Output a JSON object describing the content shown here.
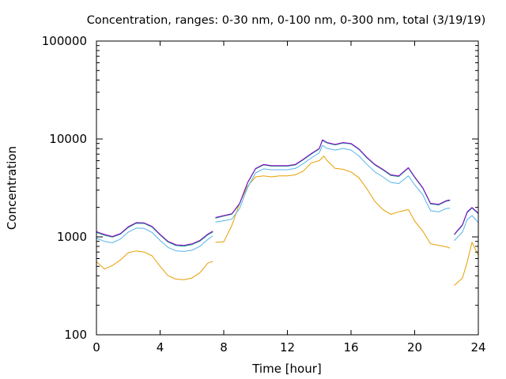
{
  "chart_data": {
    "type": "line",
    "title": "Concentration, ranges: 0-30 nm, 0-100 nm, 0-300 nm, total (3/19/19)",
    "xlabel": "Time [hour]",
    "ylabel": "Concentration",
    "xlim": [
      0,
      24
    ],
    "ylim": [
      100,
      100000
    ],
    "y_scale": "log",
    "grid": false,
    "legend": "none",
    "x_ticks": [
      "0",
      "4",
      "8",
      "12",
      "16",
      "20",
      "24"
    ],
    "y_ticks": [
      "100",
      "1000",
      "10000",
      "100000"
    ],
    "series": [
      {
        "color": "#9400d3",
        "segments": [
          [
            [
              0,
              1130
            ],
            [
              0.5,
              1060
            ],
            [
              1,
              1010
            ],
            [
              1.5,
              1080
            ],
            [
              2,
              1270
            ],
            [
              2.5,
              1400
            ],
            [
              3,
              1390
            ],
            [
              3.5,
              1280
            ],
            [
              4,
              1060
            ],
            [
              4.5,
              900
            ],
            [
              5,
              830
            ],
            [
              5.5,
              820
            ],
            [
              6,
              850
            ],
            [
              6.5,
              920
            ],
            [
              7,
              1070
            ],
            [
              7.3,
              1140
            ]
          ],
          [
            [
              7.5,
              1580
            ],
            [
              8,
              1650
            ],
            [
              8.5,
              1720
            ],
            [
              9,
              2200
            ],
            [
              9.5,
              3600
            ],
            [
              10,
              5000
            ],
            [
              10.5,
              5500
            ],
            [
              11,
              5350
            ],
            [
              11.5,
              5350
            ],
            [
              12,
              5350
            ],
            [
              12.5,
              5500
            ],
            [
              13,
              6200
            ],
            [
              13.5,
              7100
            ],
            [
              14,
              8000
            ],
            [
              14.2,
              9800
            ],
            [
              14.5,
              9200
            ],
            [
              15,
              8800
            ],
            [
              15.5,
              9200
            ],
            [
              16,
              9000
            ],
            [
              16.5,
              7900
            ],
            [
              17,
              6500
            ],
            [
              17.5,
              5500
            ],
            [
              18,
              4900
            ],
            [
              18.5,
              4300
            ],
            [
              19,
              4200
            ],
            [
              19.6,
              5100
            ],
            [
              20,
              4100
            ],
            [
              20.5,
              3200
            ],
            [
              21,
              2200
            ],
            [
              21.5,
              2150
            ],
            [
              22,
              2350
            ],
            [
              22.2,
              2380
            ]
          ],
          [
            [
              22.5,
              1070
            ],
            [
              23,
              1330
            ],
            [
              23.3,
              1800
            ],
            [
              23.6,
              2000
            ],
            [
              24,
              1750
            ]
          ]
        ]
      },
      {
        "color": "#009e73",
        "segments": [
          [
            [
              0,
              1110
            ],
            [
              0.5,
              1040
            ],
            [
              1,
              995
            ],
            [
              1.5,
              1065
            ],
            [
              2,
              1250
            ],
            [
              2.5,
              1380
            ],
            [
              3,
              1370
            ],
            [
              3.5,
              1260
            ],
            [
              4,
              1045
            ],
            [
              4.5,
              885
            ],
            [
              5,
              815
            ],
            [
              5.5,
              805
            ],
            [
              6,
              835
            ],
            [
              6.5,
              905
            ],
            [
              7,
              1050
            ],
            [
              7.3,
              1120
            ]
          ],
          [
            [
              7.5,
              1560
            ],
            [
              8,
              1630
            ],
            [
              8.5,
              1700
            ],
            [
              9,
              2170
            ],
            [
              9.5,
              3550
            ],
            [
              10,
              4950
            ],
            [
              10.5,
              5430
            ],
            [
              11,
              5280
            ],
            [
              11.5,
              5280
            ],
            [
              12,
              5280
            ],
            [
              12.5,
              5430
            ],
            [
              13,
              6120
            ],
            [
              13.5,
              7000
            ],
            [
              14,
              7900
            ],
            [
              14.2,
              9650
            ],
            [
              14.5,
              9100
            ],
            [
              15,
              8700
            ],
            [
              15.5,
              9100
            ],
            [
              16,
              8900
            ],
            [
              16.5,
              7800
            ],
            [
              17,
              6400
            ],
            [
              17.5,
              5430
            ],
            [
              18,
              4830
            ],
            [
              18.5,
              4240
            ],
            [
              19,
              4140
            ],
            [
              19.6,
              5030
            ],
            [
              20,
              4040
            ],
            [
              20.5,
              3150
            ],
            [
              21,
              2170
            ],
            [
              21.5,
              2120
            ],
            [
              22,
              2320
            ],
            [
              22.2,
              2350
            ]
          ],
          [
            [
              22.5,
              1055
            ],
            [
              23,
              1310
            ],
            [
              23.3,
              1770
            ],
            [
              23.6,
              1970
            ],
            [
              24,
              1720
            ]
          ]
        ]
      },
      {
        "color": "#56b4e9",
        "segments": [
          [
            [
              0,
              970
            ],
            [
              0.5,
              900
            ],
            [
              1,
              870
            ],
            [
              1.5,
              950
            ],
            [
              2,
              1120
            ],
            [
              2.5,
              1230
            ],
            [
              3,
              1220
            ],
            [
              3.5,
              1110
            ],
            [
              4,
              920
            ],
            [
              4.5,
              780
            ],
            [
              5,
              720
            ],
            [
              5.5,
              710
            ],
            [
              6,
              730
            ],
            [
              6.5,
              800
            ],
            [
              7,
              940
            ],
            [
              7.3,
              1020
            ]
          ],
          [
            [
              7.5,
              1420
            ],
            [
              8,
              1460
            ],
            [
              8.5,
              1520
            ],
            [
              9,
              1950
            ],
            [
              9.5,
              3200
            ],
            [
              10,
              4500
            ],
            [
              10.5,
              4950
            ],
            [
              11,
              4850
            ],
            [
              11.5,
              4850
            ],
            [
              12,
              4850
            ],
            [
              12.5,
              5000
            ],
            [
              13,
              5600
            ],
            [
              13.5,
              6400
            ],
            [
              14,
              7200
            ],
            [
              14.2,
              8600
            ],
            [
              14.5,
              8000
            ],
            [
              15,
              7700
            ],
            [
              15.5,
              8000
            ],
            [
              16,
              7700
            ],
            [
              16.5,
              6700
            ],
            [
              17,
              5500
            ],
            [
              17.5,
              4600
            ],
            [
              18,
              4100
            ],
            [
              18.5,
              3600
            ],
            [
              19,
              3500
            ],
            [
              19.6,
              4200
            ],
            [
              20,
              3400
            ],
            [
              20.5,
              2700
            ],
            [
              21,
              1850
            ],
            [
              21.5,
              1800
            ],
            [
              22,
              1950
            ],
            [
              22.2,
              1960
            ]
          ],
          [
            [
              22.5,
              920
            ],
            [
              23,
              1120
            ],
            [
              23.3,
              1500
            ],
            [
              23.6,
              1650
            ],
            [
              24,
              1400
            ]
          ]
        ]
      },
      {
        "color": "#e69f00",
        "segments": [
          [
            [
              0,
              560
            ],
            [
              0.5,
              470
            ],
            [
              1,
              510
            ],
            [
              1.5,
              580
            ],
            [
              2,
              690
            ],
            [
              2.5,
              720
            ],
            [
              3,
              700
            ],
            [
              3.5,
              640
            ],
            [
              4,
              500
            ],
            [
              4.5,
              400
            ],
            [
              5,
              370
            ],
            [
              5.5,
              365
            ],
            [
              6,
              380
            ],
            [
              6.5,
              430
            ],
            [
              7,
              540
            ],
            [
              7.3,
              560
            ]
          ],
          [
            [
              7.5,
              880
            ],
            [
              8,
              890
            ],
            [
              8.5,
              1300
            ],
            [
              9,
              2200
            ],
            [
              9.5,
              3300
            ],
            [
              10,
              4100
            ],
            [
              10.5,
              4200
            ],
            [
              11,
              4100
            ],
            [
              11.5,
              4200
            ],
            [
              12,
              4200
            ],
            [
              12.5,
              4300
            ],
            [
              13,
              4700
            ],
            [
              13.5,
              5700
            ],
            [
              14,
              6000
            ],
            [
              14.3,
              6700
            ],
            [
              14.5,
              6000
            ],
            [
              15,
              5000
            ],
            [
              15.5,
              4900
            ],
            [
              16,
              4600
            ],
            [
              16.5,
              4000
            ],
            [
              17,
              3100
            ],
            [
              17.5,
              2300
            ],
            [
              18,
              1900
            ],
            [
              18.5,
              1700
            ],
            [
              19,
              1800
            ],
            [
              19.6,
              1900
            ],
            [
              20,
              1450
            ],
            [
              20.5,
              1150
            ],
            [
              21,
              850
            ],
            [
              21.5,
              820
            ],
            [
              22,
              790
            ],
            [
              22.2,
              770
            ]
          ],
          [
            [
              22.5,
              320
            ],
            [
              23,
              380
            ],
            [
              23.3,
              550
            ],
            [
              23.6,
              880
            ],
            [
              24,
              650
            ]
          ]
        ]
      }
    ]
  }
}
